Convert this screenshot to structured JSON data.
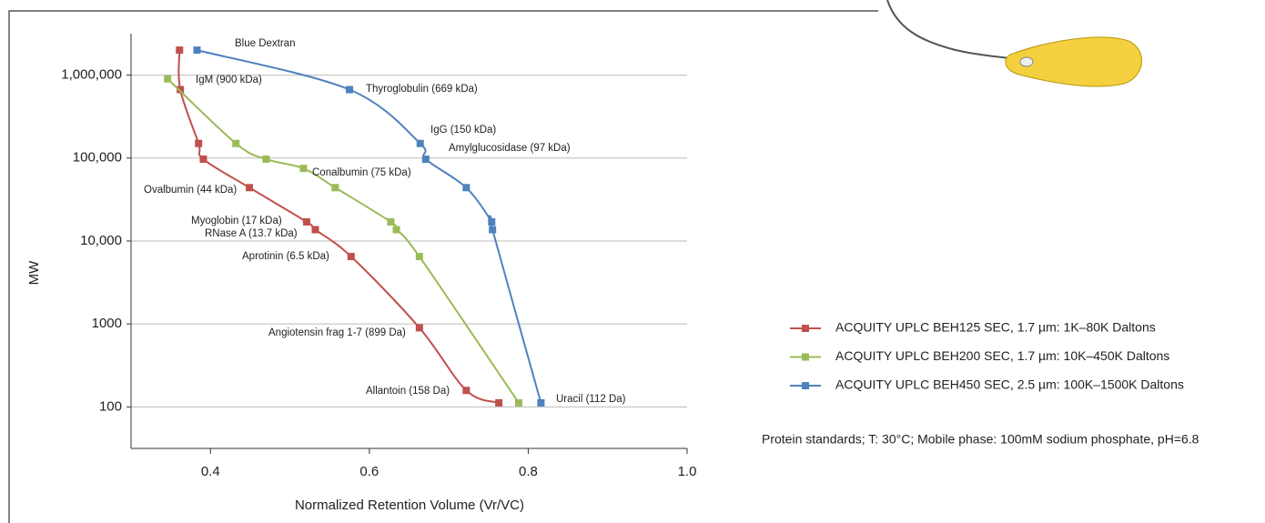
{
  "chart_data": {
    "type": "scatter",
    "x_label": "Normalized Retention Volume (Vr/VC)",
    "y_label": "MW",
    "xlim": [
      0.3,
      1.0
    ],
    "xticks": [
      0.4,
      0.6,
      0.8,
      {
        "value": 1.0,
        "label": "1.0"
      }
    ],
    "ylim": [
      31.6,
      3160000
    ],
    "yticks": [
      {
        "value": 1000000,
        "label": "1,000,000"
      },
      {
        "value": 100000,
        "label": "100,000"
      },
      {
        "value": 10000,
        "label": "10,000"
      },
      1000,
      100
    ],
    "log_y": true,
    "grid": true,
    "legend": "right",
    "series": [
      {
        "name": "ACQUITY UPLC BEH125 SEC, 1.7 µm: 1K–80K Daltons",
        "color": "#c0504d",
        "x": [
          0.361,
          0.362,
          0.385,
          0.391,
          0.449,
          0.521,
          0.532,
          0.577,
          0.663,
          0.722,
          0.763
        ],
        "values": [
          2000000,
          669000,
          150000,
          97000,
          44000,
          17000,
          13700,
          6500,
          899,
          158,
          112
        ]
      },
      {
        "name": "ACQUITY UPLC BEH200 SEC, 1.7 µm: 10K–450K Daltons",
        "color": "#9bbb59",
        "x": [
          0.346,
          0.432,
          0.47,
          0.517,
          0.557,
          0.627,
          0.634,
          0.663,
          0.788
        ],
        "values": [
          900000,
          150000,
          97000,
          75000,
          44000,
          17000,
          13700,
          6500,
          112
        ]
      },
      {
        "name": "ACQUITY UPLC BEH450 SEC, 2.5 µm: 100K–1500K Daltons",
        "color": "#4f81bd",
        "x": [
          0.383,
          0.575,
          0.664,
          0.671,
          0.722,
          0.754,
          0.755,
          0.816
        ],
        "values": [
          2000000,
          669000,
          150000,
          97000,
          44000,
          17000,
          13700,
          112
        ]
      }
    ],
    "annotations": [
      "Blue Dextran",
      "Thyroglobulin (669 kDa)",
      "IgM (900 kDa)",
      "IgG (150 kDa)",
      "Amylglucosidase (97 kDa)",
      "Conalbumin (75 kDa)",
      "Ovalbumin (44 kDa)",
      "Myoglobin (17 kDa)",
      "RNase A (13.7 kDa)",
      "Aprotinin (6.5 kDa)",
      "Angiotensin frag 1-7 (899 Da)",
      "Allantoin (158 Da)",
      "Uracil (112 Da)"
    ],
    "note": "Protein standards; T: 30°C; Mobile phase: 100mM sodium phosphate, pH=6.8"
  }
}
